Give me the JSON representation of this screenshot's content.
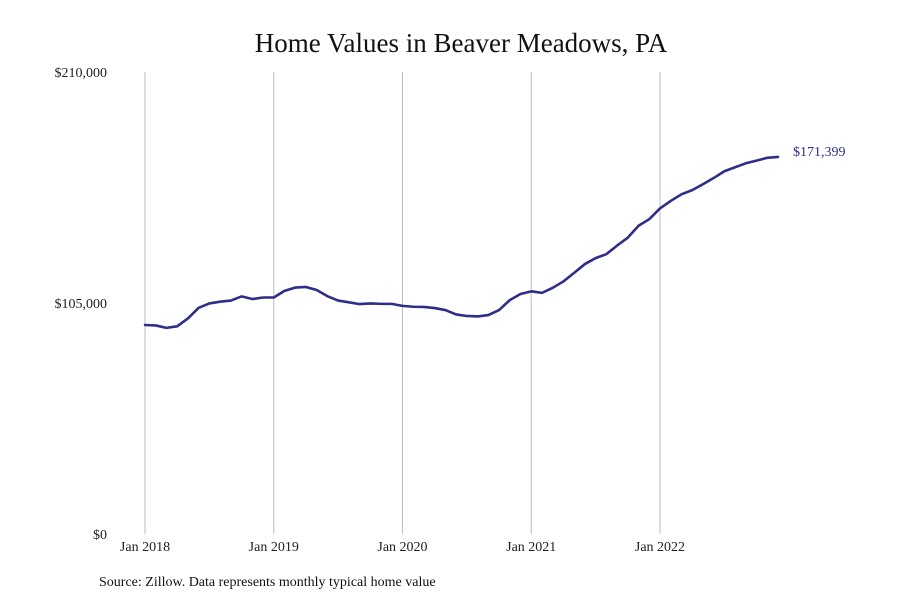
{
  "chart_data": {
    "type": "line",
    "title": "Home Values in Beaver Meadows, PA",
    "source_note": "Source: Zillow. Data represents monthly typical home value",
    "ylim": [
      0,
      210000
    ],
    "y_ticks": [
      {
        "value": 0,
        "label": "$0"
      },
      {
        "value": 105000,
        "label": "$105,000"
      },
      {
        "value": 210000,
        "label": "$210,000"
      }
    ],
    "x_range": [
      "2018-01",
      "2022-12"
    ],
    "x_ticks": [
      {
        "date": "2018-01",
        "label": "Jan 2018"
      },
      {
        "date": "2019-01",
        "label": "Jan 2019"
      },
      {
        "date": "2020-01",
        "label": "Jan 2020"
      },
      {
        "date": "2021-01",
        "label": "Jan 2021"
      },
      {
        "date": "2022-01",
        "label": "Jan 2022"
      }
    ],
    "grid": {
      "vertical": true,
      "horizontal": false
    },
    "line_color": "#2e2e8a",
    "end_label": "$171,399",
    "series": [
      {
        "points": [
          {
            "x": "2018-01",
            "y": 95000
          },
          {
            "x": "2018-02",
            "y": 94800
          },
          {
            "x": "2018-03",
            "y": 93700
          },
          {
            "x": "2018-04",
            "y": 94400
          },
          {
            "x": "2018-05",
            "y": 98000
          },
          {
            "x": "2018-06",
            "y": 102800
          },
          {
            "x": "2018-07",
            "y": 104800
          },
          {
            "x": "2018-08",
            "y": 105600
          },
          {
            "x": "2018-09",
            "y": 106100
          },
          {
            "x": "2018-10",
            "y": 108000
          },
          {
            "x": "2018-11",
            "y": 106800
          },
          {
            "x": "2018-12",
            "y": 107500
          },
          {
            "x": "2019-01",
            "y": 107500
          },
          {
            "x": "2019-02",
            "y": 110500
          },
          {
            "x": "2019-03",
            "y": 112000
          },
          {
            "x": "2019-04",
            "y": 112300
          },
          {
            "x": "2019-05",
            "y": 110900
          },
          {
            "x": "2019-06",
            "y": 108100
          },
          {
            "x": "2019-07",
            "y": 106100
          },
          {
            "x": "2019-08",
            "y": 105300
          },
          {
            "x": "2019-09",
            "y": 104500
          },
          {
            "x": "2019-10",
            "y": 104800
          },
          {
            "x": "2019-11",
            "y": 104600
          },
          {
            "x": "2019-12",
            "y": 104600
          },
          {
            "x": "2020-01",
            "y": 103700
          },
          {
            "x": "2020-02",
            "y": 103300
          },
          {
            "x": "2020-03",
            "y": 103200
          },
          {
            "x": "2020-04",
            "y": 102700
          },
          {
            "x": "2020-05",
            "y": 101800
          },
          {
            "x": "2020-06",
            "y": 99800
          },
          {
            "x": "2020-07",
            "y": 99100
          },
          {
            "x": "2020-08",
            "y": 98900
          },
          {
            "x": "2020-09",
            "y": 99500
          },
          {
            "x": "2020-10",
            "y": 101800
          },
          {
            "x": "2020-11",
            "y": 106300
          },
          {
            "x": "2020-12",
            "y": 109100
          },
          {
            "x": "2021-01",
            "y": 110300
          },
          {
            "x": "2021-02",
            "y": 109600
          },
          {
            "x": "2021-03",
            "y": 111900
          },
          {
            "x": "2021-04",
            "y": 114800
          },
          {
            "x": "2021-05",
            "y": 118700
          },
          {
            "x": "2021-06",
            "y": 122700
          },
          {
            "x": "2021-07",
            "y": 125400
          },
          {
            "x": "2021-08",
            "y": 127200
          },
          {
            "x": "2021-09",
            "y": 131100
          },
          {
            "x": "2021-10",
            "y": 134700
          },
          {
            "x": "2021-11",
            "y": 140100
          },
          {
            "x": "2021-12",
            "y": 143100
          },
          {
            "x": "2022-01",
            "y": 148000
          },
          {
            "x": "2022-02",
            "y": 151400
          },
          {
            "x": "2022-03",
            "y": 154400
          },
          {
            "x": "2022-04",
            "y": 156300
          },
          {
            "x": "2022-05",
            "y": 159000
          },
          {
            "x": "2022-06",
            "y": 161800
          },
          {
            "x": "2022-07",
            "y": 164900
          },
          {
            "x": "2022-08",
            "y": 166700
          },
          {
            "x": "2022-09",
            "y": 168500
          },
          {
            "x": "2022-10",
            "y": 169700
          },
          {
            "x": "2022-11",
            "y": 171000
          },
          {
            "x": "2022-12",
            "y": 171399
          }
        ]
      }
    ]
  }
}
